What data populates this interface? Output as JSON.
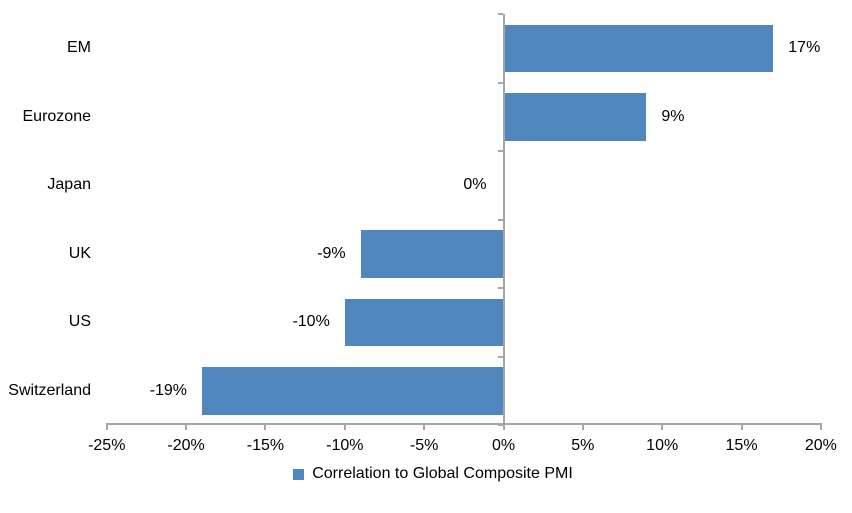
{
  "chart_data": {
    "type": "bar",
    "orientation": "horizontal",
    "title": "",
    "categories": [
      "EM",
      "Eurozone",
      "Japan",
      "UK",
      "US",
      "Switzerland"
    ],
    "values": [
      17,
      9,
      0,
      -9,
      -10,
      -19
    ],
    "value_labels": [
      "17%",
      "9%",
      "0%",
      "-9%",
      "-10%",
      "-19%"
    ],
    "series": [
      {
        "name": "Correlation to Global Composite PMI",
        "values": [
          17,
          9,
          0,
          -9,
          -10,
          -19
        ]
      }
    ],
    "xlabel": "",
    "ylabel": "",
    "xlim": [
      -25,
      20
    ],
    "x_tick_step": 5,
    "x_tick_labels": [
      "-25%",
      "-20%",
      "-15%",
      "-10%",
      "-5%",
      "0%",
      "5%",
      "10%",
      "15%",
      "20%"
    ],
    "grid": false,
    "legend_position": "bottom-center",
    "bar_color": "#4e86bd",
    "axis_color": "#a6a6a6",
    "text_color": "#000000"
  },
  "legend": {
    "label": "Correlation to Global Composite PMI"
  }
}
